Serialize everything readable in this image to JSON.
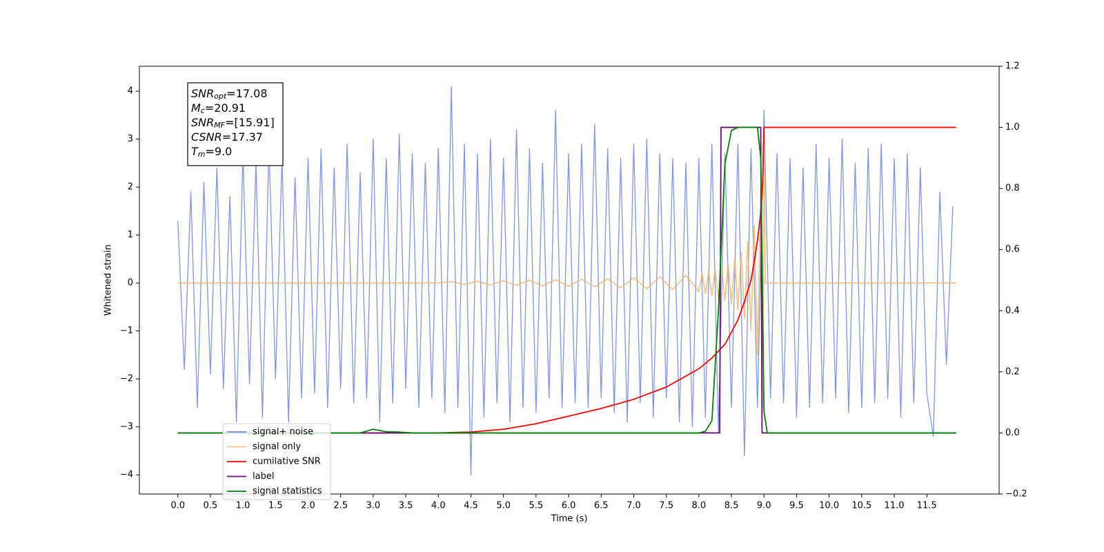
{
  "chart_data": {
    "type": "line",
    "xlabel": "Time (s)",
    "ylabel": "Whitened strain",
    "xlim": [
      -0.59,
      12.61
    ],
    "ylim": [
      -4.4,
      4.52
    ],
    "y2lim": [
      -0.2,
      1.2
    ],
    "xticks": [
      {
        "value": 0,
        "label": "0.0"
      },
      0.5,
      {
        "value": 1,
        "label": "1.0"
      },
      1.5,
      {
        "value": 2,
        "label": "2.0"
      },
      2.5,
      {
        "value": 3,
        "label": "3.0"
      },
      3.5,
      {
        "value": 4,
        "label": "4.0"
      },
      4.5,
      {
        "value": 5,
        "label": "5.0"
      },
      5.5,
      {
        "value": 6,
        "label": "6.0"
      },
      6.5,
      {
        "value": 7,
        "label": "7.0"
      },
      7.5,
      {
        "value": 8,
        "label": "8.0"
      },
      8.5,
      {
        "value": 9,
        "label": "9.0"
      },
      9.5,
      {
        "value": 10,
        "label": "10.0"
      },
      10.5,
      {
        "value": 11,
        "label": "11.0"
      },
      11.5
    ],
    "yticks": [
      {
        "value": -4,
        "label": "−4"
      },
      {
        "value": -3,
        "label": "−3"
      },
      {
        "value": -2,
        "label": "−2"
      },
      {
        "value": -1,
        "label": "−1"
      },
      0,
      1,
      2,
      3,
      4
    ],
    "y2ticks": [
      {
        "value": -0.2,
        "label": "−0.2"
      },
      {
        "value": 0,
        "label": "0.0"
      },
      0.2,
      0.4,
      0.6,
      0.8,
      {
        "value": 1,
        "label": "1.0"
      },
      1.2
    ],
    "legend": "lower left",
    "annotations": [
      {
        "symbol": "SNR",
        "subscript": "opt",
        "rest": "=17.08"
      },
      {
        "symbol": "M",
        "subscript": "c",
        "rest": "=20.91"
      },
      {
        "symbol": "SNR",
        "subscript": "MF",
        "rest": "=[15.91]"
      },
      {
        "symbol": "CSNR",
        "rest": "=17.37"
      },
      {
        "symbol": "T",
        "subscript": "m",
        "rest": "=9.0"
      }
    ],
    "series": [
      {
        "name": "signal+ noise",
        "color": "#6d8ae5",
        "x": [
          0,
          0.1,
          0.2,
          0.3,
          0.4,
          0.5,
          0.6,
          0.7,
          0.8,
          0.9,
          1,
          1.1,
          1.2,
          1.3,
          1.4,
          1.5,
          1.6,
          1.7,
          1.8,
          1.9,
          2,
          2.1,
          2.2,
          2.3,
          2.4,
          2.5,
          2.6,
          2.7,
          2.8,
          2.9,
          3,
          3.1,
          3.2,
          3.3,
          3.4,
          3.5,
          3.6,
          3.7,
          3.8,
          3.9,
          4,
          4.1,
          4.2,
          4.3,
          4.4,
          4.5,
          4.6,
          4.7,
          4.8,
          4.9,
          5,
          5.1,
          5.2,
          5.3,
          5.4,
          5.5,
          5.6,
          5.7,
          5.8,
          5.9,
          6,
          6.1,
          6.2,
          6.3,
          6.4,
          6.5,
          6.6,
          6.7,
          6.8,
          6.9,
          7,
          7.1,
          7.2,
          7.3,
          7.4,
          7.5,
          7.6,
          7.7,
          7.8,
          7.9,
          8,
          8.1,
          8.2,
          8.3,
          8.4,
          8.5,
          8.6,
          8.7,
          8.8,
          8.9,
          9,
          9.1,
          9.2,
          9.3,
          9.4,
          9.5,
          9.6,
          9.7,
          9.8,
          9.9,
          10,
          10.1,
          10.2,
          10.3,
          10.4,
          10.5,
          10.6,
          10.7,
          10.8,
          10.9,
          11,
          11.1,
          11.2,
          11.3,
          11.4,
          11.5,
          11.6,
          11.7,
          11.8,
          11.9
        ],
        "values": [
          1.3,
          -1.8,
          1.9,
          -2.6,
          2.1,
          -1.9,
          2.4,
          -2.2,
          1.8,
          -2.9,
          2.7,
          -2.1,
          2.5,
          -2.8,
          2.9,
          -2.0,
          2.6,
          -2.9,
          2.2,
          -2.4,
          2.6,
          -2.3,
          2.8,
          -2.6,
          2.4,
          -2.2,
          2.9,
          -2.5,
          2.3,
          -2.4,
          3.0,
          -2.9,
          2.6,
          -2.5,
          3.1,
          -2.2,
          2.7,
          -2.6,
          2.5,
          -2.4,
          2.8,
          -2.7,
          4.1,
          -2.6,
          2.9,
          -4.0,
          2.7,
          -2.8,
          3.0,
          -2.5,
          2.6,
          -2.9,
          3.2,
          -2.6,
          2.8,
          -2.7,
          2.5,
          -2.4,
          3.6,
          -2.6,
          2.7,
          -2.5,
          2.9,
          -2.6,
          3.3,
          -2.4,
          2.8,
          -2.7,
          2.6,
          -2.9,
          2.9,
          -2.5,
          3.0,
          -2.8,
          2.7,
          -2.4,
          2.6,
          -2.9,
          2.5,
          -3.0,
          2.6,
          -2.8,
          2.9,
          -3.1,
          2.7,
          -2.6,
          2.9,
          -3.6,
          2.8,
          -2.6,
          3.6,
          -2.4,
          2.7,
          -2.5,
          2.6,
          -2.8,
          2.4,
          -2.6,
          2.9,
          -2.5,
          2.6,
          -2.4,
          3.0,
          -2.7,
          2.5,
          -2.6,
          2.8,
          -2.5,
          2.9,
          -2.4,
          2.6,
          -2.8,
          2.7,
          -2.5,
          2.4,
          -2.3,
          -3.2,
          1.9,
          -1.7,
          1.6
        ]
      },
      {
        "name": "signal only",
        "color": "#f0b060",
        "x": [
          0,
          4.0,
          4.2,
          4.4,
          4.6,
          4.8,
          5.0,
          5.2,
          5.4,
          5.6,
          5.8,
          6.0,
          6.2,
          6.4,
          6.6,
          6.8,
          7.0,
          7.2,
          7.4,
          7.6,
          7.8,
          8.0,
          8.05,
          8.1,
          8.15,
          8.2,
          8.25,
          8.3,
          8.35,
          8.4,
          8.45,
          8.5,
          8.55,
          8.6,
          8.65,
          8.7,
          8.75,
          8.8,
          8.85,
          8.9,
          8.95,
          8.98,
          9.0,
          9.02,
          11.95
        ],
        "values": [
          0,
          0,
          0.03,
          -0.03,
          0.04,
          -0.04,
          0.05,
          -0.05,
          0.06,
          -0.06,
          0.07,
          -0.07,
          0.08,
          -0.08,
          0.09,
          -0.1,
          0.11,
          -0.12,
          0.13,
          -0.14,
          0.16,
          -0.18,
          0.2,
          -0.22,
          0.24,
          -0.26,
          0.28,
          -0.3,
          0.33,
          -0.36,
          0.4,
          -0.44,
          0.5,
          -0.56,
          0.64,
          -0.74,
          0.86,
          -1.0,
          1.2,
          -1.5,
          1.9,
          -2.6,
          3.2,
          0,
          0
        ]
      },
      {
        "name": "cumilative SNR",
        "color": "#ff0000",
        "axis": "y2",
        "x": [
          0,
          4.0,
          4.5,
          5.0,
          5.5,
          6.0,
          6.5,
          7.0,
          7.5,
          8.0,
          8.2,
          8.4,
          8.5,
          8.6,
          8.7,
          8.8,
          8.85,
          8.9,
          8.95,
          8.98,
          9.0,
          11.95
        ],
        "values": [
          0,
          0,
          0.003,
          0.012,
          0.03,
          0.055,
          0.08,
          0.11,
          0.15,
          0.21,
          0.245,
          0.29,
          0.33,
          0.37,
          0.43,
          0.5,
          0.56,
          0.63,
          0.72,
          0.82,
          1.0,
          1.0
        ]
      },
      {
        "name": "label",
        "color": "#6a0a7a",
        "axis": "y2",
        "x": [
          0,
          8.32,
          8.34,
          8.95,
          8.97,
          11.95
        ],
        "values": [
          0,
          0,
          1,
          1,
          0,
          0
        ]
      },
      {
        "name": "signal statistics",
        "color": "#008000",
        "axis": "y2",
        "x": [
          0,
          2.8,
          3.0,
          3.2,
          3.4,
          3.6,
          8.0,
          8.1,
          8.2,
          8.3,
          8.4,
          8.5,
          8.6,
          8.9,
          8.95,
          9.0,
          9.05,
          11.95
        ],
        "values": [
          0,
          0,
          0.012,
          0.004,
          0.003,
          0,
          0,
          0.005,
          0.04,
          0.4,
          0.88,
          0.99,
          1.0,
          1.0,
          0.9,
          0.07,
          0,
          0
        ]
      }
    ]
  }
}
